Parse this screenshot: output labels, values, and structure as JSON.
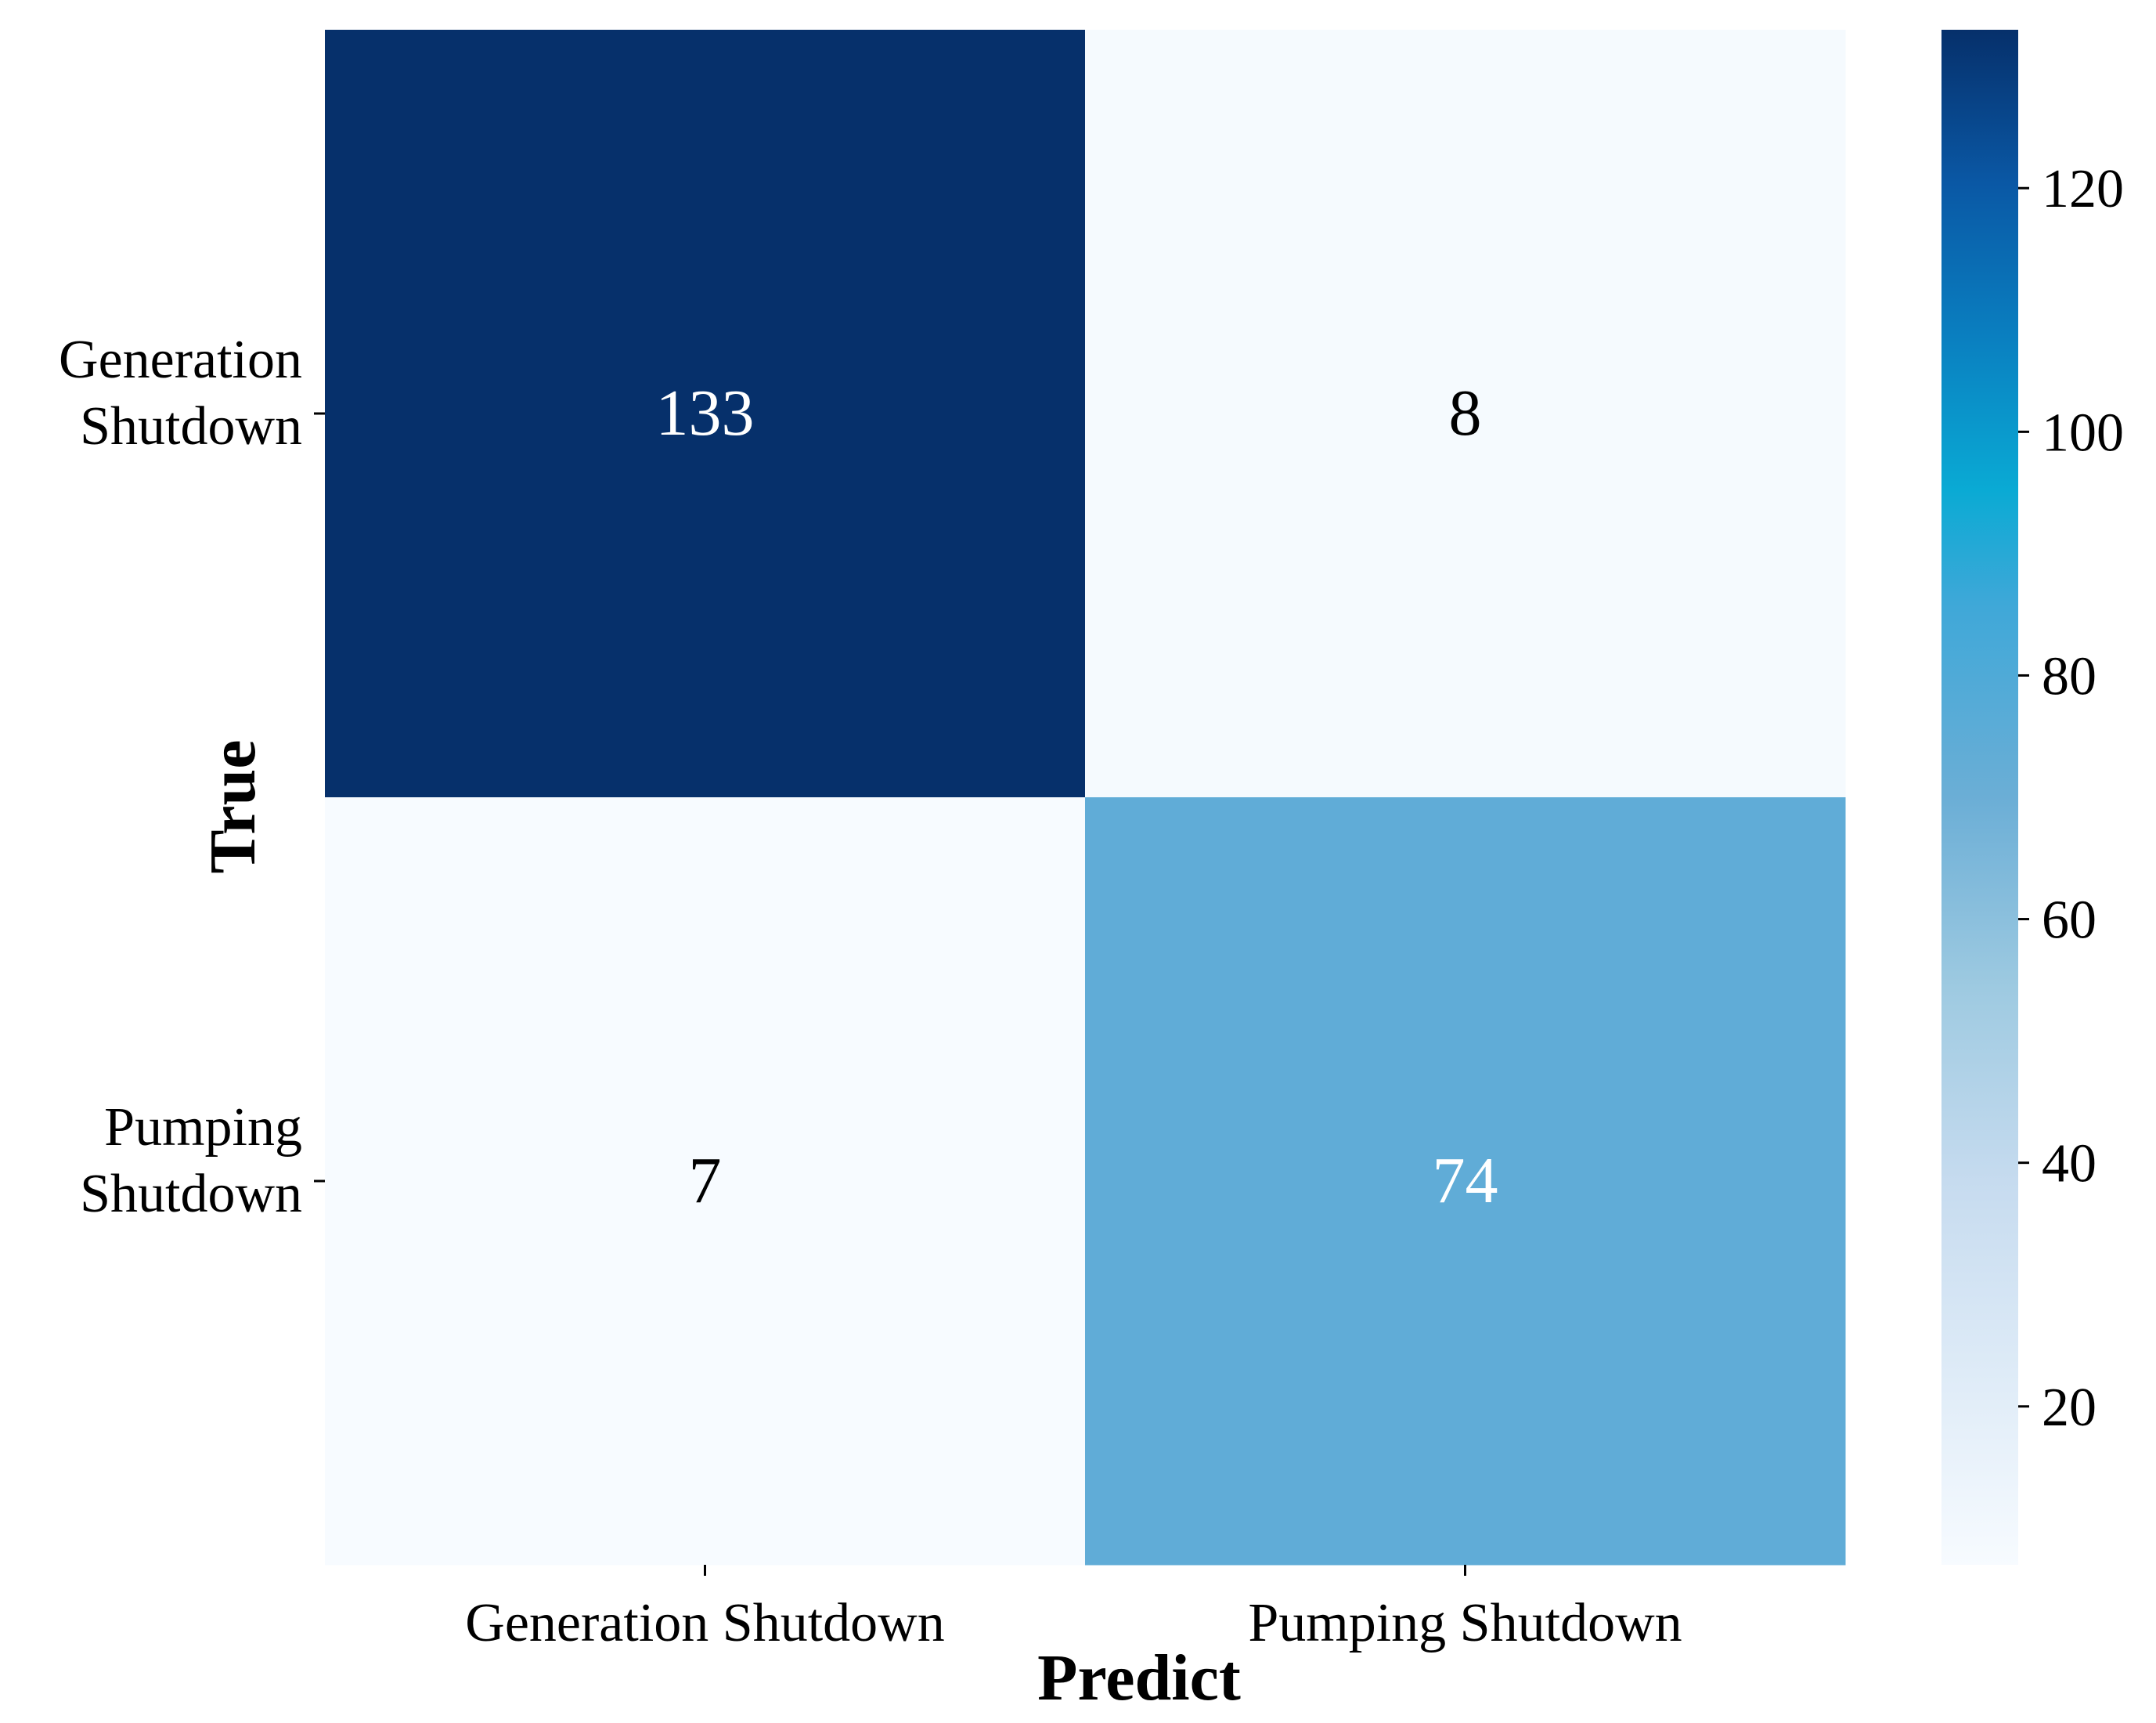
{
  "chart_data": {
    "type": "heatmap",
    "title": "",
    "xlabel": "Predict",
    "ylabel": "True",
    "x_categories": [
      "Generation Shutdown",
      "Pumping Shutdown"
    ],
    "y_categories": [
      [
        "Generation",
        "Shutdown"
      ],
      [
        "Pumping",
        "Shutdown"
      ]
    ],
    "values": [
      [
        133,
        8
      ],
      [
        7,
        74
      ]
    ],
    "colorbar": {
      "range": [
        7,
        133
      ],
      "ticks": [
        20,
        40,
        60,
        80,
        100,
        120
      ],
      "colormap": "Blues"
    },
    "colors": {
      "dark_text": "#000000",
      "light_text": "#ffffff"
    }
  }
}
